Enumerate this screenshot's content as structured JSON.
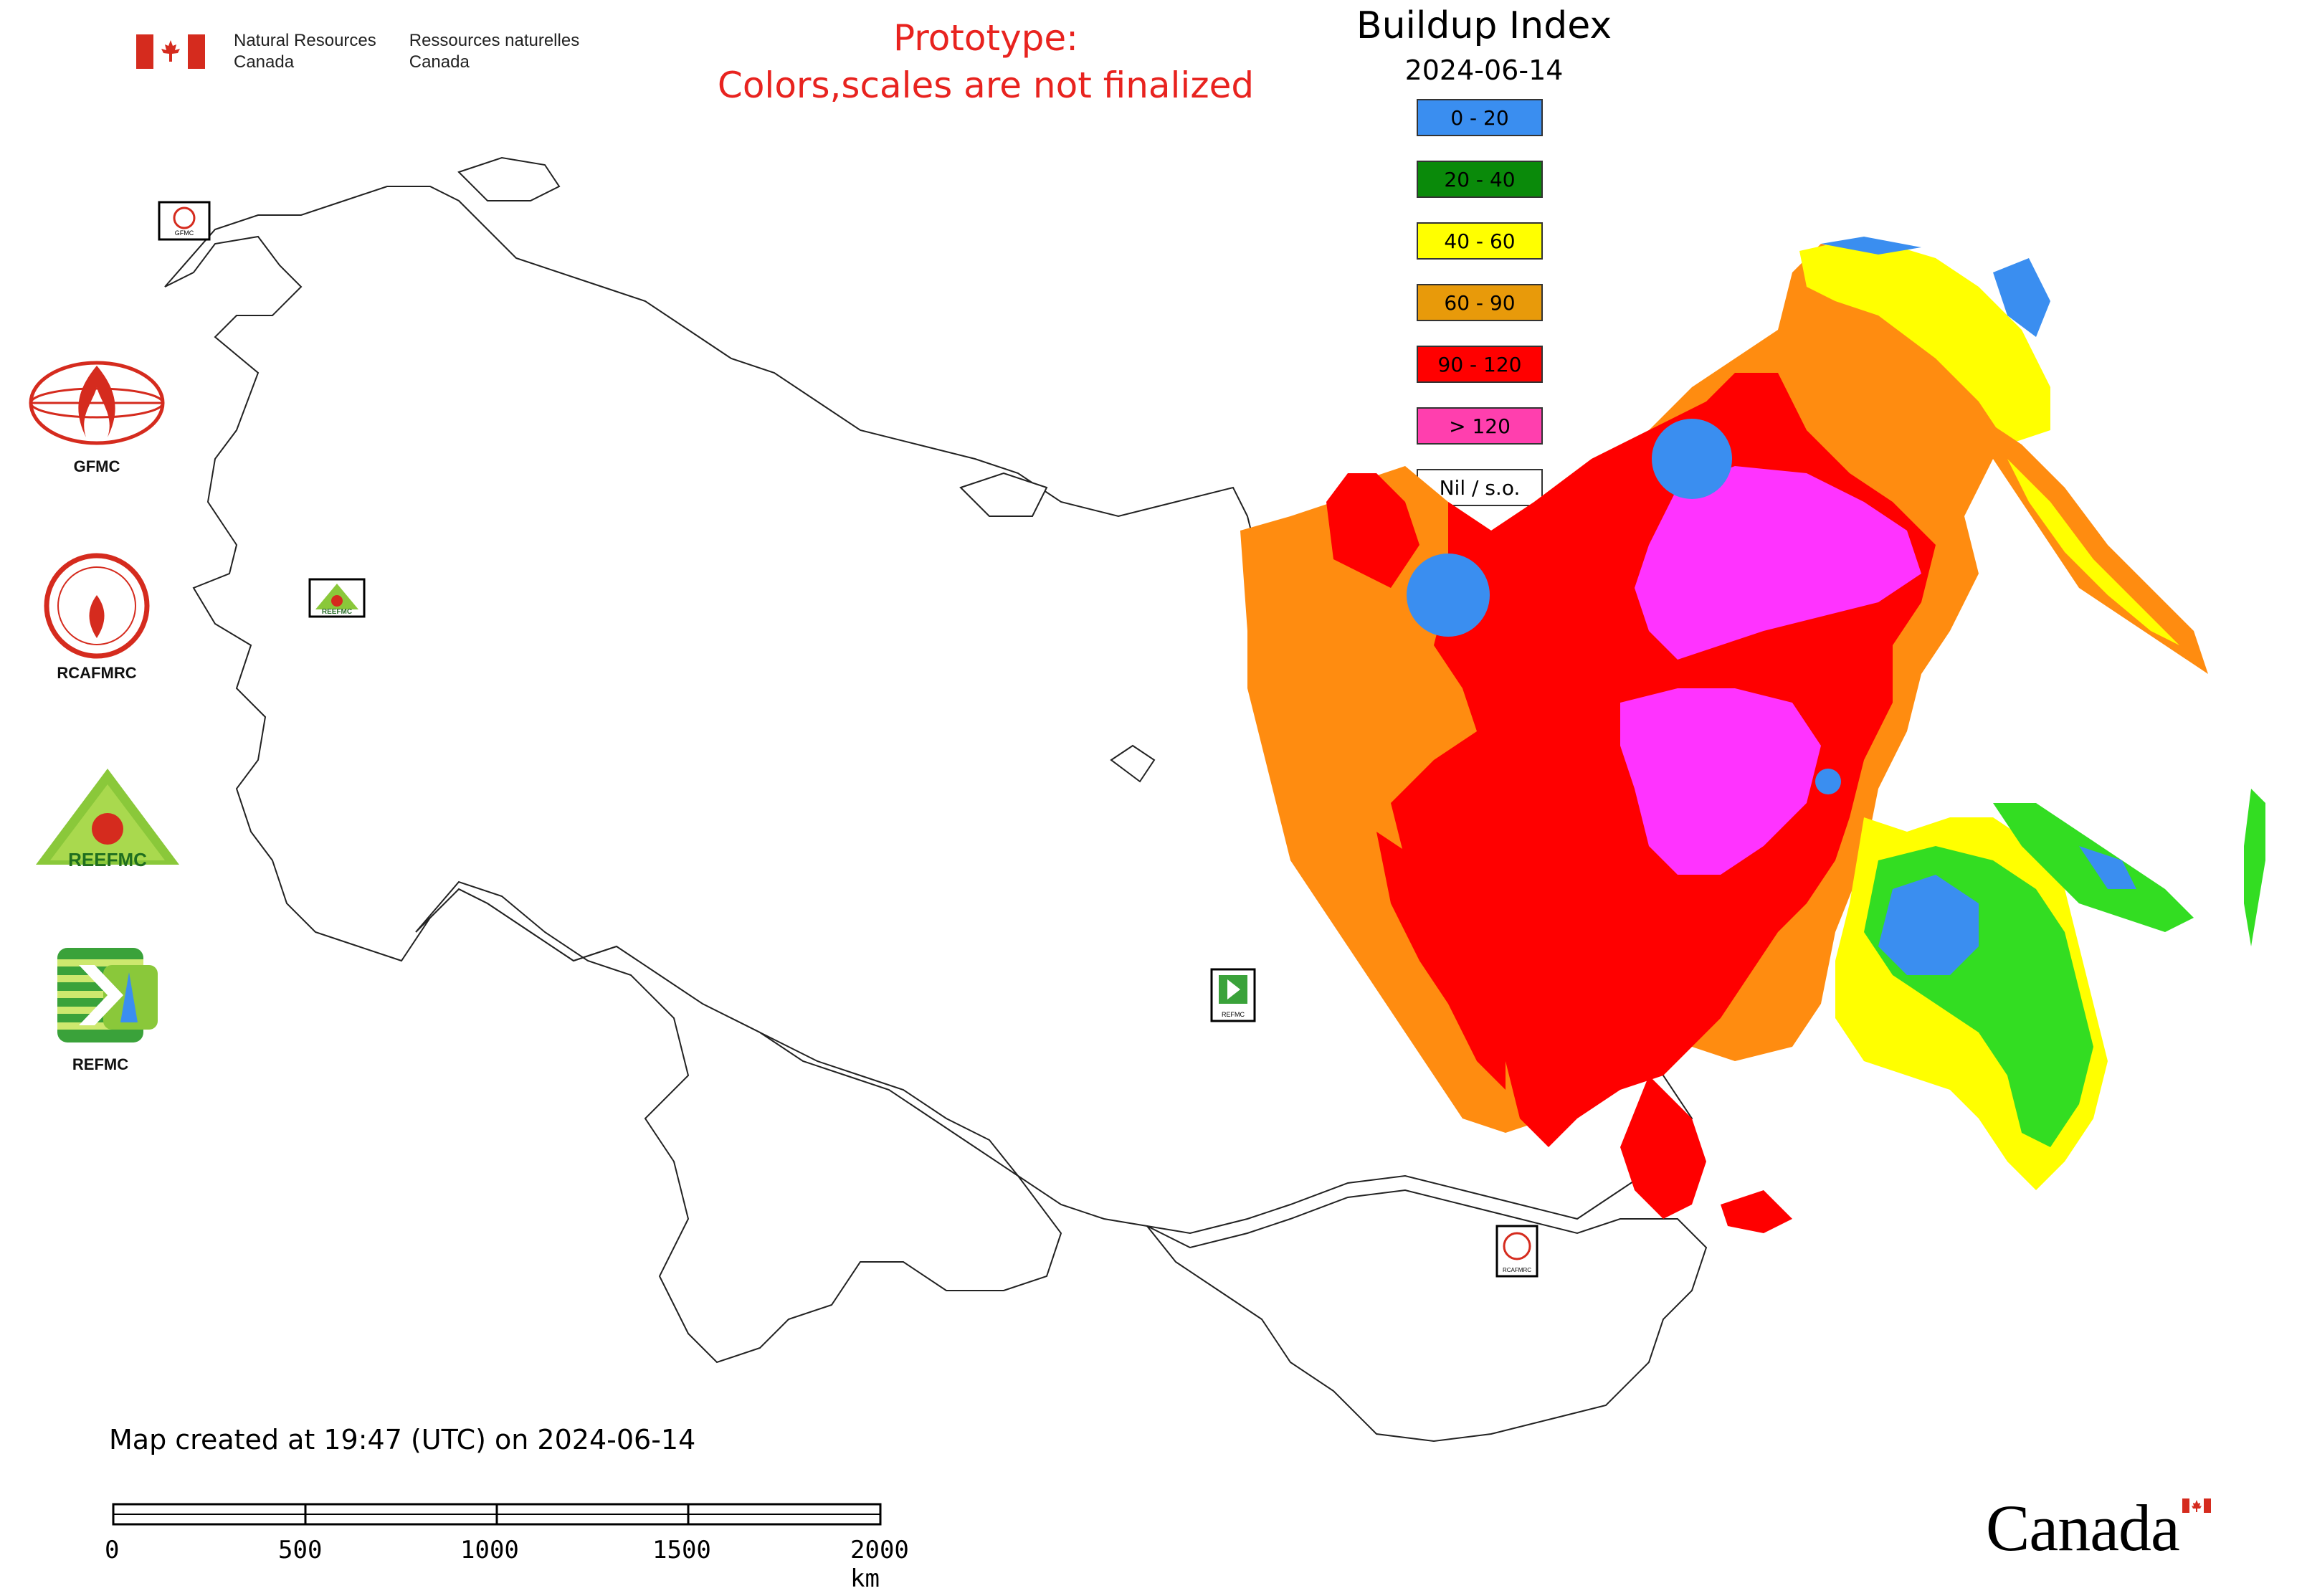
{
  "header": {
    "department_en_line1": "Natural Resources",
    "department_en_line2": "Canada",
    "department_fr_line1": "Ressources naturelles",
    "department_fr_line2": "Canada",
    "prototype_line1": "Prototype:",
    "prototype_line2": "Colors,scales are not finalized"
  },
  "map": {
    "title": "Buildup Index",
    "date": "2024-06-14",
    "legend": [
      {
        "label": "0 - 20",
        "color": "#3a8ef0"
      },
      {
        "label": "20 - 40",
        "color": "#0a8a0a"
      },
      {
        "label": "40 - 60",
        "color": "#ffff00"
      },
      {
        "label": "60 - 90",
        "color": "#e89a0a"
      },
      {
        "label": "90 - 120",
        "color": "#ff0000"
      },
      {
        "label": "> 120",
        "color": "#ff3fae"
      },
      {
        "label": "Nil / s.o.",
        "color": "#ffffff"
      }
    ],
    "colors": {
      "orange": "#ff8c10",
      "red": "#ff0000",
      "magenta": "#ff33ff",
      "blue": "#3a8ef0",
      "green": "#33dd22",
      "yellow": "#ffff00"
    }
  },
  "logos": [
    {
      "label": "GFMC",
      "icon": "gfmc-logo-icon"
    },
    {
      "label": "RCAFMRC",
      "icon": "rcafmrc-logo-icon"
    },
    {
      "label": "",
      "icon": "reefmc-logo-icon",
      "wordmark": "REEFMC"
    },
    {
      "label": "REFMC",
      "icon": "refmc-logo-icon"
    }
  ],
  "map_markers": [
    {
      "icon": "gfmc-marker-icon",
      "tag": "GFMC"
    },
    {
      "icon": "reefmc-marker-icon",
      "tag": "REEFMC"
    },
    {
      "icon": "refmc-marker-icon",
      "tag": "REFMC"
    },
    {
      "icon": "rcafmrc-marker-icon",
      "tag": "RCAFMRC"
    }
  ],
  "footer": {
    "created": "Map created at 19:47 (UTC) on 2024-06-14",
    "scale_ticks": [
      "0",
      "500",
      "1000",
      "1500",
      "2000 km"
    ],
    "wordmark": "Canada"
  }
}
